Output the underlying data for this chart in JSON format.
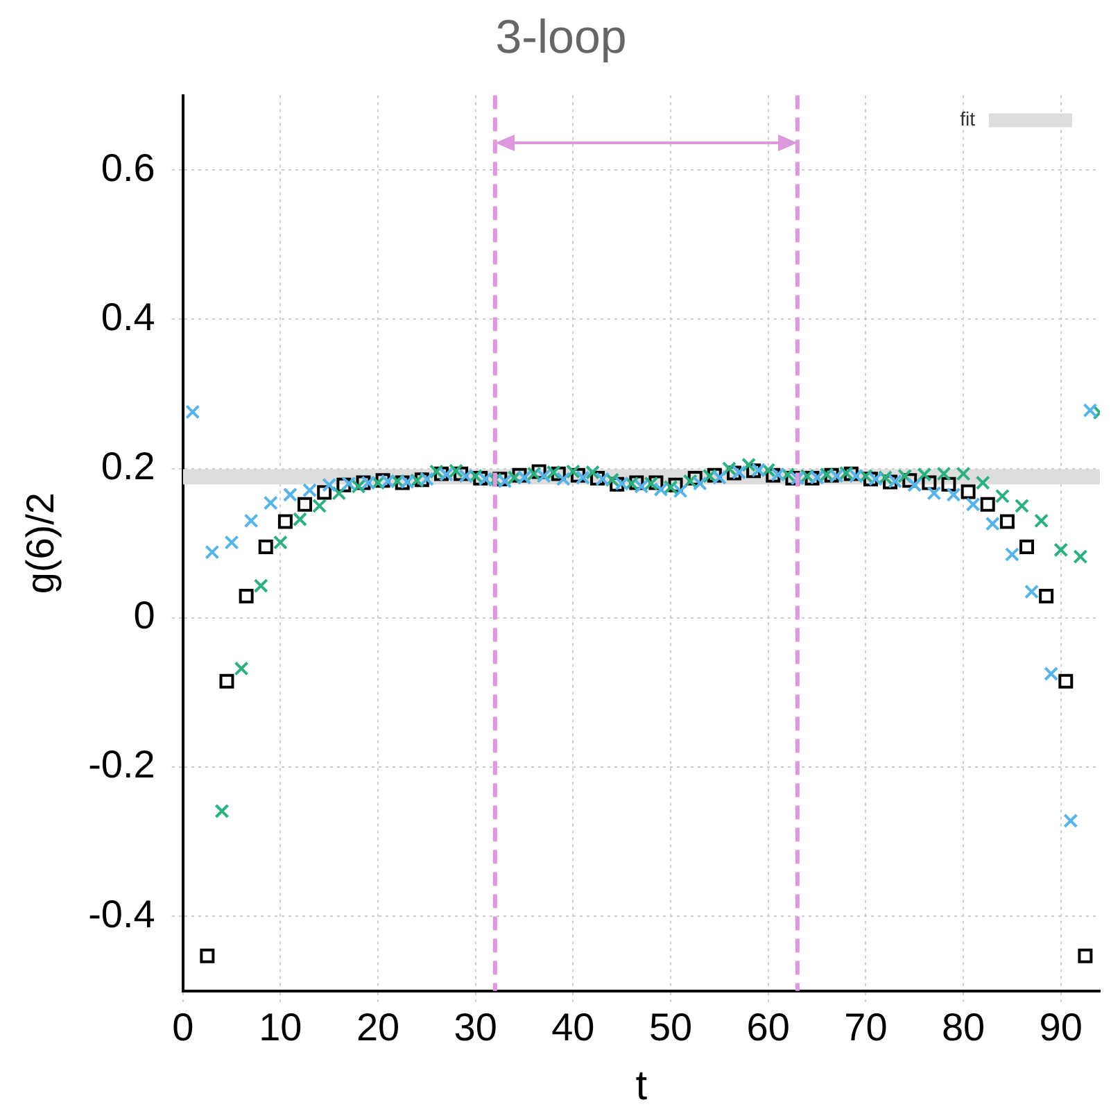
{
  "chart_data": {
    "type": "scatter",
    "title": "3-loop",
    "xlabel": "t",
    "ylabel": "g(6)/2",
    "xlim": [
      0,
      94
    ],
    "ylim": [
      -0.5,
      0.7
    ],
    "xticks": [
      0,
      10,
      20,
      30,
      40,
      50,
      60,
      70,
      80,
      90
    ],
    "yticks": [
      {
        "value": -0.4,
        "label": "-0.4"
      },
      {
        "value": -0.2,
        "label": "-0.2"
      },
      0,
      {
        "value": 0.2,
        "label": "0.2"
      },
      {
        "value": 0.4,
        "label": "0.4"
      },
      {
        "value": 0.6,
        "label": "0.6"
      }
    ],
    "grid": true,
    "legend": "top right",
    "ref_lines": [
      {
        "axis": "x",
        "value": 32,
        "color": "#dd99dd",
        "line_style": "dashed"
      },
      {
        "axis": "x",
        "value": 63,
        "color": "#dd99dd",
        "line_style": "dashed"
      }
    ],
    "series": [
      {
        "marker": "cross",
        "color": "#56b4e9",
        "x": [
          1,
          3,
          5,
          7,
          9,
          11,
          13,
          15,
          17,
          19,
          21,
          23,
          25,
          27,
          29,
          31,
          33,
          35,
          37,
          39,
          41,
          43,
          45,
          47,
          49,
          51,
          53,
          55,
          57,
          59,
          61,
          63,
          65,
          67,
          69,
          71,
          73,
          75,
          77,
          79,
          81,
          83,
          85,
          87,
          89,
          91,
          93
        ],
        "values": [
          0.276,
          0.088,
          0.101,
          0.13,
          0.154,
          0.165,
          0.171,
          0.178,
          0.18,
          0.181,
          0.183,
          0.182,
          0.186,
          0.192,
          0.19,
          0.186,
          0.183,
          0.188,
          0.19,
          0.186,
          0.188,
          0.186,
          0.18,
          0.176,
          0.172,
          0.17,
          0.18,
          0.188,
          0.195,
          0.198,
          0.192,
          0.187,
          0.188,
          0.19,
          0.19,
          0.186,
          0.183,
          0.178,
          0.167,
          0.165,
          0.152,
          0.126,
          0.085,
          0.035,
          -0.075,
          -0.272,
          0.278
        ]
      },
      {
        "marker": "cross",
        "color": "#2bb080",
        "x": [
          4,
          6,
          8,
          10,
          12,
          14,
          16,
          18,
          20,
          22,
          24,
          26,
          28,
          30,
          32,
          34,
          36,
          38,
          40,
          42,
          44,
          46,
          48,
          50,
          52,
          54,
          56,
          58,
          60,
          62,
          64,
          66,
          68,
          70,
          72,
          74,
          76,
          78,
          80,
          82,
          84,
          86,
          88,
          90,
          92,
          94
        ],
        "values": [
          -0.259,
          -0.068,
          0.043,
          0.101,
          0.132,
          0.15,
          0.167,
          0.176,
          0.181,
          0.183,
          0.184,
          0.196,
          0.197,
          0.19,
          0.185,
          0.188,
          0.193,
          0.195,
          0.196,
          0.195,
          0.185,
          0.18,
          0.18,
          0.175,
          0.183,
          0.19,
          0.2,
          0.205,
          0.198,
          0.192,
          0.19,
          0.192,
          0.194,
          0.19,
          0.188,
          0.19,
          0.192,
          0.193,
          0.193,
          0.181,
          0.163,
          0.15,
          0.13,
          0.091,
          0.082,
          0.275
        ]
      },
      {
        "marker": "square",
        "color": "#000000",
        "x": [
          2.5,
          4.5,
          6.5,
          8.5,
          10.5,
          12.5,
          14.5,
          16.5,
          18.5,
          20.5,
          22.5,
          24.5,
          26.5,
          28.5,
          30.5,
          32.5,
          34.5,
          36.5,
          38.5,
          40.5,
          42.5,
          44.5,
          46.5,
          48.5,
          50.5,
          52.5,
          54.5,
          56.5,
          58.5,
          60.5,
          62.5,
          64.5,
          66.5,
          68.5,
          70.5,
          72.5,
          74.5,
          76.5,
          78.5,
          80.5,
          82.5,
          84.5,
          86.5,
          88.5,
          90.5,
          92.5
        ],
        "values": [
          -0.453,
          -0.085,
          0.029,
          0.095,
          0.129,
          0.152,
          0.168,
          0.178,
          0.181,
          0.184,
          0.181,
          0.185,
          0.193,
          0.193,
          0.187,
          0.186,
          0.191,
          0.196,
          0.193,
          0.191,
          0.187,
          0.179,
          0.181,
          0.181,
          0.178,
          0.187,
          0.191,
          0.194,
          0.197,
          0.191,
          0.187,
          0.187,
          0.191,
          0.193,
          0.186,
          0.182,
          0.184,
          0.181,
          0.179,
          0.169,
          0.152,
          0.129,
          0.095,
          0.029,
          -0.085,
          -0.453
        ]
      },
      {
        "type": "line",
        "name": "fit",
        "color": "#dddddd",
        "x": [
          0,
          94
        ],
        "values": [
          0.189,
          0.189
        ]
      }
    ]
  }
}
